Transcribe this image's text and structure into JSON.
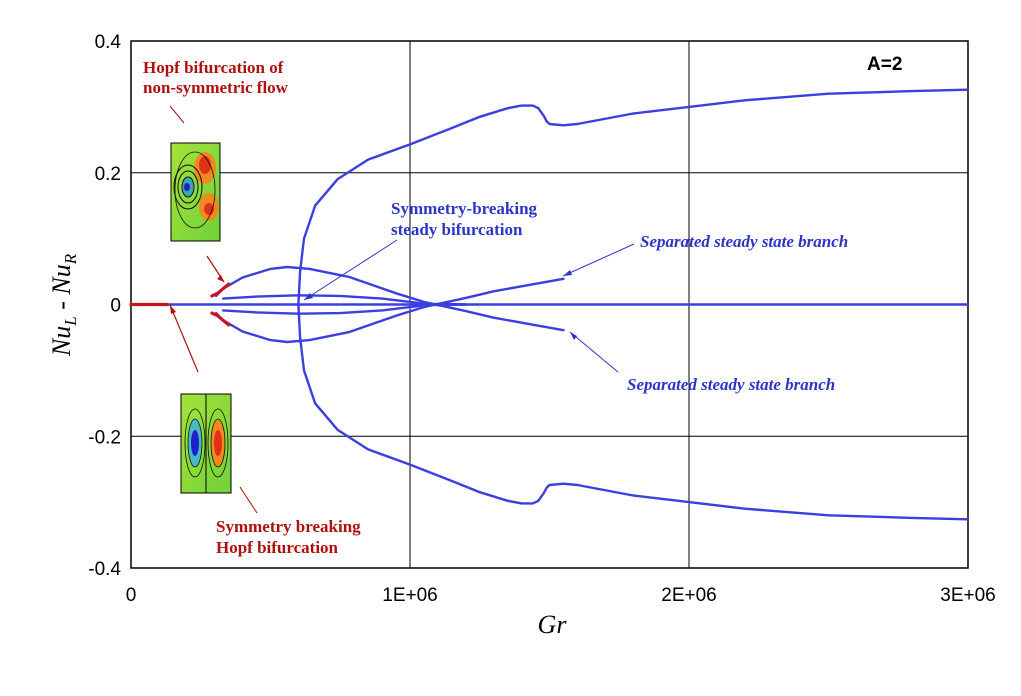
{
  "chart_data": {
    "type": "line",
    "title": "",
    "xlabel": "Gr",
    "ylabel": {
      "main": "Nu",
      "sub_l": "L",
      "minus": " - Nu",
      "sub_r": "R"
    },
    "label_box": "A=2",
    "xlim": [
      0,
      3000000
    ],
    "ylim": [
      -0.4,
      0.4
    ],
    "x_ticks": [
      0,
      1000000,
      2000000,
      3000000
    ],
    "x_tick_labels": [
      "0",
      "1E+06",
      "2E+06",
      "3E+06"
    ],
    "y_ticks": [
      0.4,
      0.2,
      0,
      -0.2,
      -0.4
    ],
    "y_tick_labels": [
      "0.4",
      "0.2",
      "0",
      "-0.2",
      "-0.4"
    ],
    "grid": true,
    "colors": {
      "blue": "#3c3fe0",
      "red": "#c8141e",
      "grid": "#000000"
    },
    "series": [
      {
        "color": "blue",
        "points": [
          [
            0,
            0
          ],
          [
            3000000,
            0
          ]
        ]
      },
      {
        "color": "red",
        "points": [
          [
            0,
            0
          ],
          [
            130000,
            0
          ]
        ]
      },
      {
        "color": "blue",
        "points": [
          [
            305000,
            0.013
          ],
          [
            330000,
            0.024
          ],
          [
            400000,
            0.041
          ],
          [
            500000,
            0.054
          ],
          [
            560000,
            0.057
          ],
          [
            640000,
            0.054
          ],
          [
            780000,
            0.042
          ],
          [
            950000,
            0.017
          ],
          [
            1050000,
            0.004
          ],
          [
            1200000,
            -0.01
          ],
          [
            1300000,
            -0.02
          ],
          [
            1550000,
            -0.039
          ]
        ]
      },
      {
        "color": "blue",
        "points": [
          [
            305000,
            -0.013
          ],
          [
            330000,
            -0.024
          ],
          [
            400000,
            -0.041
          ],
          [
            500000,
            -0.054
          ],
          [
            560000,
            -0.057
          ],
          [
            640000,
            -0.054
          ],
          [
            780000,
            -0.042
          ],
          [
            950000,
            -0.017
          ],
          [
            1050000,
            -0.004
          ],
          [
            1200000,
            0.01
          ],
          [
            1300000,
            0.02
          ],
          [
            1550000,
            0.039
          ]
        ]
      },
      {
        "color": "blue",
        "points": [
          [
            330000,
            0.009
          ],
          [
            450000,
            0.012
          ],
          [
            600000,
            0.014
          ],
          [
            750000,
            0.013
          ],
          [
            900000,
            0.009
          ],
          [
            1000000,
            0.004
          ],
          [
            1100000,
            -0.001
          ],
          [
            1200000,
            0.0
          ]
        ]
      },
      {
        "color": "blue",
        "points": [
          [
            330000,
            -0.009
          ],
          [
            450000,
            -0.012
          ],
          [
            600000,
            -0.014
          ],
          [
            750000,
            -0.013
          ],
          [
            900000,
            -0.009
          ],
          [
            1000000,
            -0.004
          ],
          [
            1100000,
            0.001
          ],
          [
            1200000,
            0.0
          ]
        ]
      },
      {
        "color": "blue",
        "points": [
          [
            600000,
            0
          ],
          [
            606000,
            0.05
          ],
          [
            620000,
            0.1
          ],
          [
            660000,
            0.15
          ],
          [
            740000,
            0.19
          ],
          [
            850000,
            0.22
          ],
          [
            1000000,
            0.243
          ],
          [
            1150000,
            0.268
          ],
          [
            1250000,
            0.285
          ],
          [
            1350000,
            0.298
          ],
          [
            1400000,
            0.302
          ],
          [
            1440000,
            0.302
          ],
          [
            1460000,
            0.298
          ],
          [
            1480000,
            0.286
          ],
          [
            1490000,
            0.278
          ],
          [
            1500000,
            0.274
          ],
          [
            1550000,
            0.272
          ],
          [
            1600000,
            0.274
          ],
          [
            1800000,
            0.29
          ],
          [
            2000000,
            0.3
          ],
          [
            2200000,
            0.31
          ],
          [
            2500000,
            0.32
          ],
          [
            2800000,
            0.324
          ],
          [
            3000000,
            0.326
          ]
        ]
      },
      {
        "color": "blue",
        "points": [
          [
            600000,
            0
          ],
          [
            606000,
            -0.05
          ],
          [
            620000,
            -0.1
          ],
          [
            660000,
            -0.15
          ],
          [
            740000,
            -0.19
          ],
          [
            850000,
            -0.22
          ],
          [
            1000000,
            -0.243
          ],
          [
            1150000,
            -0.268
          ],
          [
            1250000,
            -0.285
          ],
          [
            1350000,
            -0.298
          ],
          [
            1400000,
            -0.302
          ],
          [
            1440000,
            -0.302
          ],
          [
            1460000,
            -0.298
          ],
          [
            1480000,
            -0.286
          ],
          [
            1490000,
            -0.278
          ],
          [
            1500000,
            -0.274
          ],
          [
            1550000,
            -0.272
          ],
          [
            1600000,
            -0.274
          ],
          [
            1800000,
            -0.29
          ],
          [
            2000000,
            -0.3
          ],
          [
            2200000,
            -0.31
          ],
          [
            2500000,
            -0.32
          ],
          [
            2800000,
            -0.324
          ],
          [
            3000000,
            -0.326
          ]
        ]
      },
      {
        "color": "red",
        "points": [
          [
            290000,
            0.013
          ],
          [
            310000,
            0.017
          ],
          [
            330000,
            0.024
          ],
          [
            350000,
            0.031
          ]
        ]
      },
      {
        "color": "red",
        "points": [
          [
            290000,
            -0.013
          ],
          [
            310000,
            -0.017
          ],
          [
            330000,
            -0.024
          ],
          [
            350000,
            -0.031
          ]
        ]
      }
    ],
    "annotations": {
      "hopf_nonsym": [
        "Hopf bifurcation of",
        "non-symmetric flow"
      ],
      "sym_breaking_steady": [
        "Symmetry-breaking",
        "steady bifurcation"
      ],
      "separated_upper": "Separated steady state branch",
      "separated_lower": "Separated steady state branch",
      "sym_breaking_hopf": [
        "Symmetry breaking",
        "Hopf bifurcation"
      ]
    }
  }
}
